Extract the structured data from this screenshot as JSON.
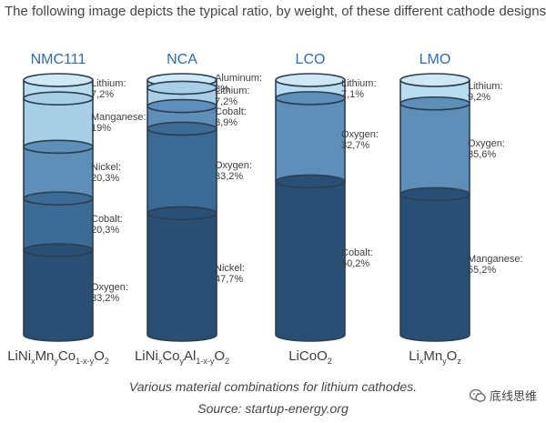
{
  "header": {
    "intro": "The following image depicts the typical ratio, by weight, of these different cathode designs."
  },
  "chart_data": {
    "type": "bar",
    "stacked": true,
    "categories": [
      "NMC111",
      "NCA",
      "LCO",
      "LMO"
    ],
    "bars": [
      {
        "name": "NMC111",
        "formula_parts": [
          [
            "LiNi",
            ""
          ],
          [
            "x",
            "sub"
          ],
          [
            "Mn",
            ""
          ],
          [
            "y",
            "sub"
          ],
          [
            "Co",
            ""
          ],
          [
            "1-x-y",
            "sub"
          ],
          [
            "O",
            ""
          ],
          [
            "2",
            "sub"
          ]
        ],
        "segments": [
          {
            "label": "Lithium:",
            "value_text": "7,2%",
            "value": 7.2
          },
          {
            "label": "Manganese:",
            "value_text": "19%",
            "value": 19
          },
          {
            "label": "Nickel:",
            "value_text": "20,3%",
            "value": 20.3
          },
          {
            "label": "Cobalt:",
            "value_text": "20,3%",
            "value": 20.3
          },
          {
            "label": "Oxygen:",
            "value_text": "33,2%",
            "value": 33.2
          }
        ]
      },
      {
        "name": "NCA",
        "formula_parts": [
          [
            "LiNi",
            ""
          ],
          [
            "x",
            "sub"
          ],
          [
            "Co",
            ""
          ],
          [
            "y",
            "sub"
          ],
          [
            "Al",
            ""
          ],
          [
            "1-x-y",
            "sub"
          ],
          [
            "O",
            ""
          ],
          [
            "2",
            "sub"
          ]
        ],
        "segments": [
          {
            "label": "Aluminum:",
            "value_text": "3%",
            "value": 3
          },
          {
            "label": "Lithium:",
            "value_text": "7,2%",
            "value": 7.2
          },
          {
            "label": "Cobalt:",
            "value_text": "8,9%",
            "value": 8.9
          },
          {
            "label": "Oxygen:",
            "value_text": "33,2%",
            "value": 33.2
          },
          {
            "label": "Nickel:",
            "value_text": "47,7%",
            "value": 47.7
          }
        ]
      },
      {
        "name": "LCO",
        "formula_parts": [
          [
            "LiCoO",
            ""
          ],
          [
            "2",
            "sub"
          ]
        ],
        "segments": [
          {
            "label": "Lithium:",
            "value_text": "7,1%",
            "value": 7.1
          },
          {
            "label": "Oxygen:",
            "value_text": "32,7%",
            "value": 32.7
          },
          {
            "label": "Cobalt:",
            "value_text": "60,2%",
            "value": 60.2
          }
        ]
      },
      {
        "name": "LMO",
        "formula_parts": [
          [
            "Li",
            ""
          ],
          [
            "x",
            "sub"
          ],
          [
            "Mn",
            ""
          ],
          [
            "y",
            "sub"
          ],
          [
            "O",
            ""
          ],
          [
            "z",
            "sub"
          ]
        ],
        "segments": [
          {
            "label": "Lithium:",
            "value_text": "9,2%",
            "value": 9.2
          },
          {
            "label": "Oxygen:",
            "value_text": "35,6%",
            "value": 35.6
          },
          {
            "label": "Manganese:",
            "value_text": "55,2%",
            "value": 55.2
          }
        ]
      }
    ],
    "colors": {
      "title": "#2f6da6",
      "outline": "#2b3f52",
      "shades": [
        "#b9dcee",
        "#a9cfe6",
        "#8fbad8",
        "#5e8fb8",
        "#3c6b95",
        "#2a4f74"
      ]
    }
  },
  "caption": {
    "line1": "Various material combinations for lithium cathodes.",
    "line2": "Source: startup-energy.org"
  },
  "watermark": {
    "text": "底线思维"
  }
}
